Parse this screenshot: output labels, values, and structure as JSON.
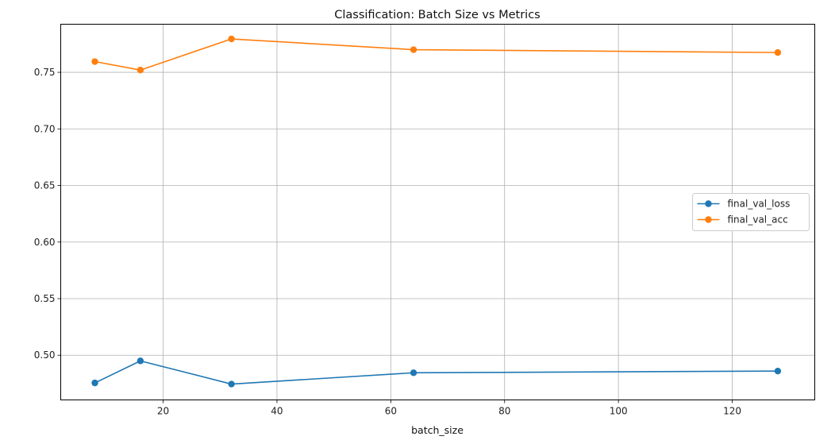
{
  "chart_data": {
    "type": "line",
    "title": "Classification: Batch Size vs Metrics",
    "xlabel": "batch_size",
    "ylabel": "",
    "x": [
      8,
      16,
      32,
      64,
      128
    ],
    "xlim": [
      2,
      134.5
    ],
    "ylim": [
      0.4605,
      0.7925
    ],
    "xticks": [
      20,
      40,
      60,
      80,
      100,
      120
    ],
    "yticks": [
      0.5,
      0.55,
      0.6,
      0.65,
      0.7,
      0.75
    ],
    "xtick_labels": [
      "20",
      "40",
      "60",
      "80",
      "100",
      "120"
    ],
    "ytick_labels": [
      "0.50",
      "0.55",
      "0.60",
      "0.65",
      "0.70",
      "0.75"
    ],
    "grid": true,
    "legend_position": "center-right",
    "series": [
      {
        "name": "final_val_loss",
        "color": "#1f77b4",
        "values": [
          0.4755,
          0.495,
          0.4745,
          0.4845,
          0.486
        ]
      },
      {
        "name": "final_val_acc",
        "color": "#ff7f0e",
        "values": [
          0.7595,
          0.752,
          0.7795,
          0.77,
          0.7675
        ]
      }
    ]
  }
}
